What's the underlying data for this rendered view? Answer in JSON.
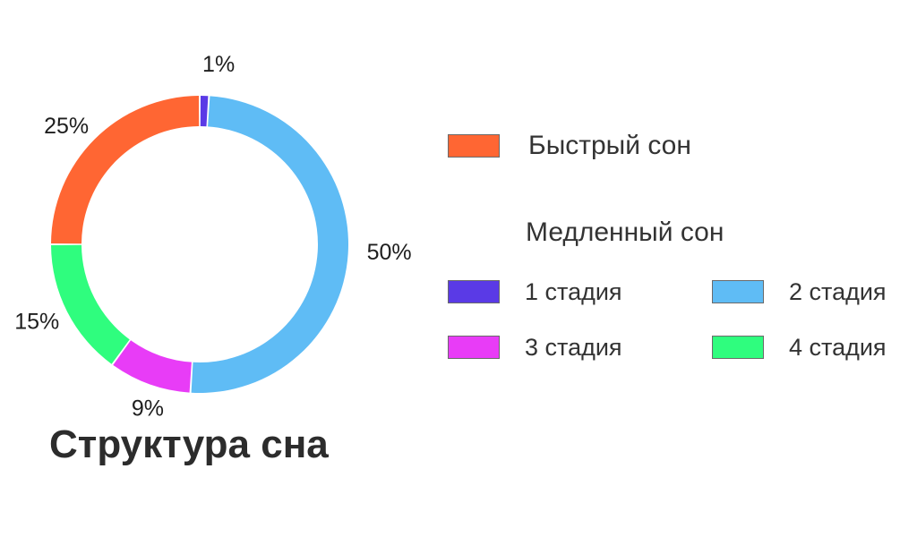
{
  "chart_data": {
    "type": "pie",
    "title": "Структура сна",
    "slices": [
      {
        "name": "1 стадия",
        "value": 1,
        "label": "1%",
        "color": "#5a3ae6"
      },
      {
        "name": "2 стадия",
        "value": 50,
        "label": "50%",
        "color": "#5fbcf5"
      },
      {
        "name": "3 стадия",
        "value": 9,
        "label": "9%",
        "color": "#e83cf7"
      },
      {
        "name": "4 стадия",
        "value": 15,
        "label": "15%",
        "color": "#2ffd7e"
      },
      {
        "name": "Быстрый сон",
        "value": 25,
        "label": "25%",
        "color": "#ff6633"
      }
    ]
  },
  "legend": {
    "rem": {
      "label": "Быстрый сон",
      "color": "#ff6633"
    },
    "nrem_heading": "Медленный сон",
    "stages": [
      {
        "label": "1 стадия",
        "color": "#5a3ae6"
      },
      {
        "label": "2 стадия",
        "color": "#5fbcf5"
      },
      {
        "label": "3 стадия",
        "color": "#e83cf7"
      },
      {
        "label": "4 стадия",
        "color": "#2ffd7e"
      }
    ]
  }
}
